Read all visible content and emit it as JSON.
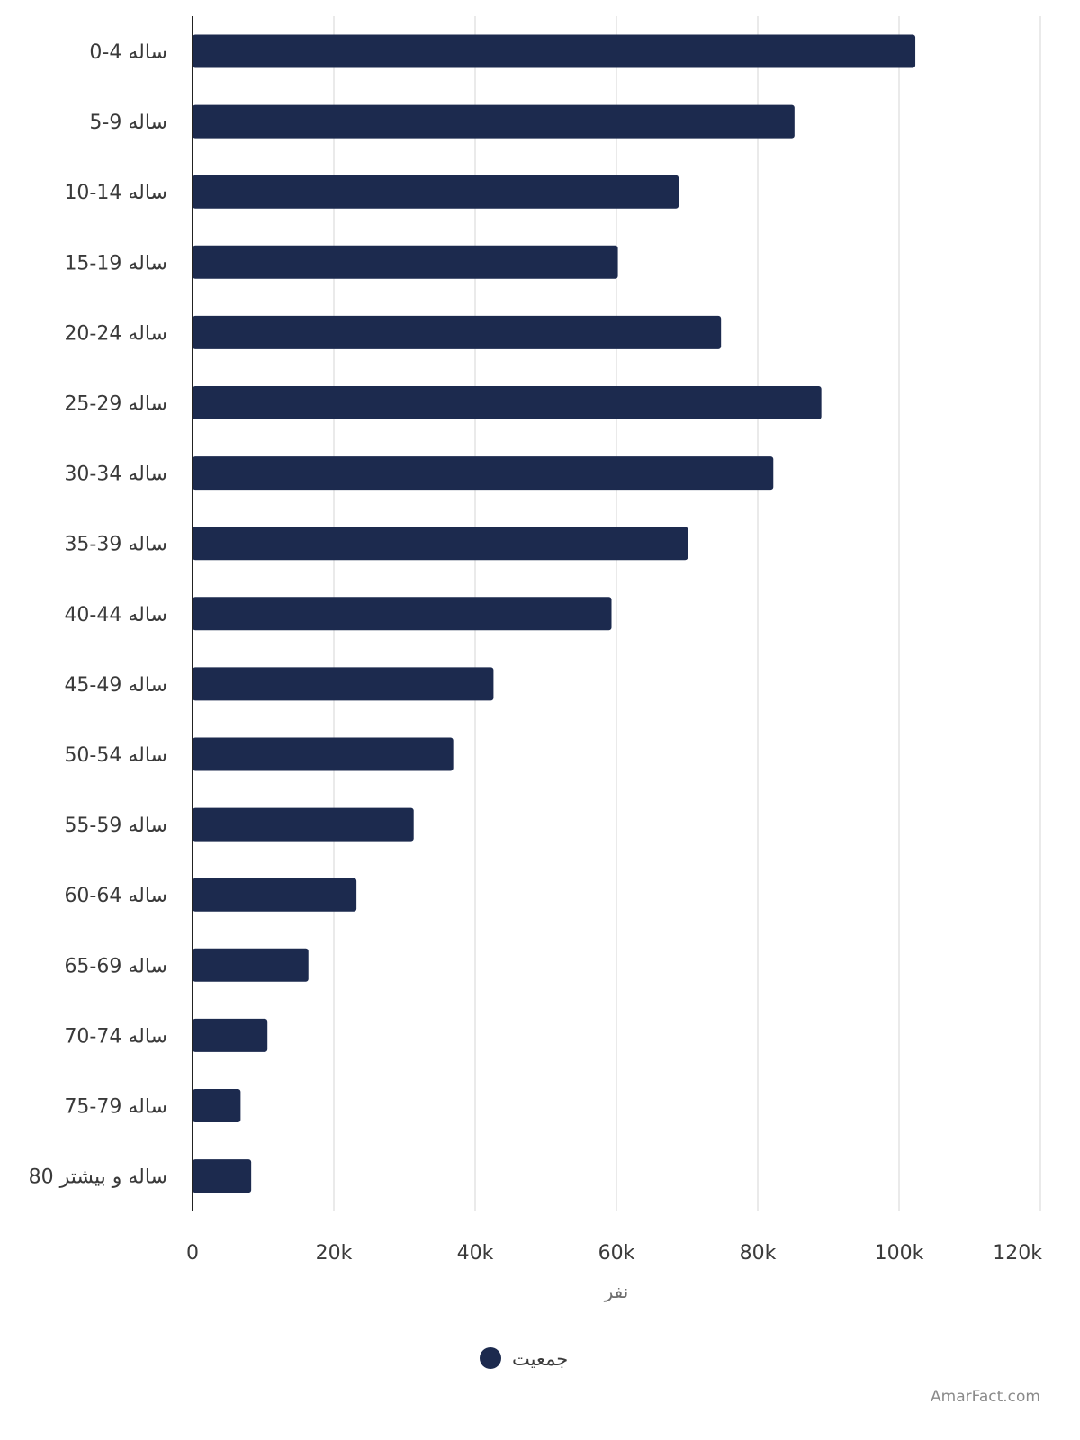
{
  "chart_data": {
    "type": "bar",
    "orientation": "horizontal",
    "categories": [
      "0-4 ساله",
      "5-9 ساله",
      "10-14 ساله",
      "15-19 ساله",
      "20-24 ساله",
      "25-29 ساله",
      "30-34 ساله",
      "35-39 ساله",
      "40-44 ساله",
      "45-49 ساله",
      "50-54 ساله",
      "55-59 ساله",
      "60-64 ساله",
      "65-69 ساله",
      "70-74 ساله",
      "75-79 ساله",
      "80 ساله و بیشتر"
    ],
    "series": [
      {
        "name": "جمعیت",
        "color": "#1c2a4e",
        "values": [
          102300,
          85200,
          68800,
          60200,
          74800,
          89000,
          82200,
          70100,
          59300,
          42600,
          36900,
          31300,
          23200,
          16400,
          10600,
          6800,
          8300
        ]
      }
    ],
    "xlabel": "نفر",
    "ylabel": "",
    "xlim": [
      0,
      120000
    ],
    "xticks": [
      0,
      20000,
      40000,
      60000,
      80000,
      100000,
      120000
    ],
    "xtick_labels": [
      "0",
      "20k",
      "40k",
      "60k",
      "80k",
      "100k",
      "120k"
    ],
    "grid": "vertical",
    "legend_position": "bottom-center"
  },
  "watermark": "AmarFact.com"
}
